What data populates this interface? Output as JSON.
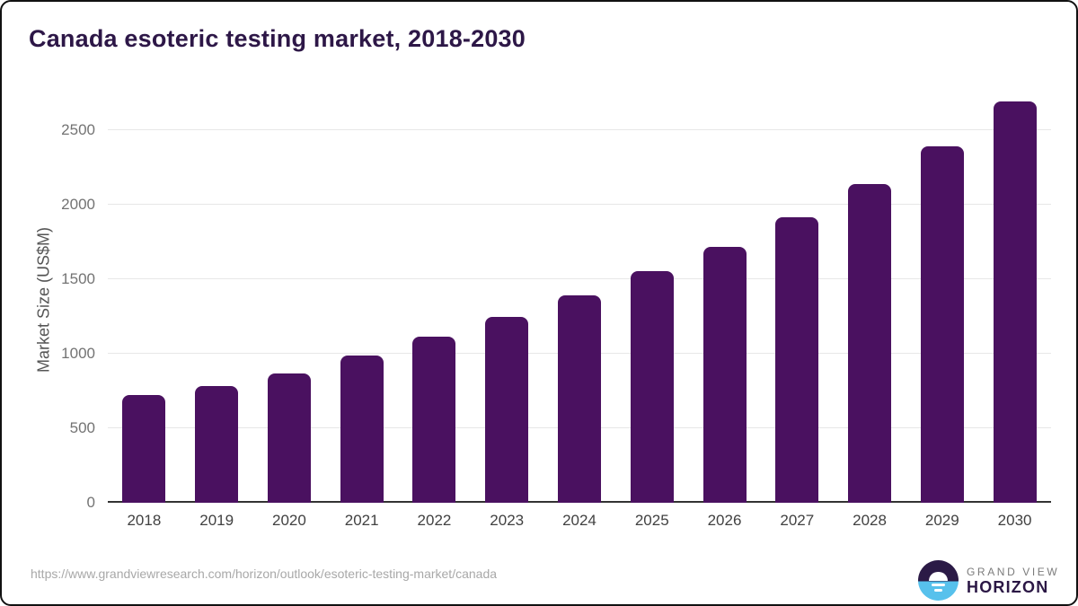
{
  "title": "Canada esoteric testing market, 2018-2030",
  "chart_data": {
    "type": "bar",
    "title": "Canada esoteric testing market, 2018-2030",
    "categories": [
      "2018",
      "2019",
      "2020",
      "2021",
      "2022",
      "2023",
      "2024",
      "2025",
      "2026",
      "2027",
      "2028",
      "2029",
      "2030"
    ],
    "values": [
      725,
      785,
      865,
      990,
      1115,
      1245,
      1390,
      1555,
      1715,
      1915,
      2140,
      2390,
      2690
    ],
    "xlabel": "",
    "ylabel": "Market Size (US$M)",
    "ylim": [
      0,
      2770
    ],
    "yticks": [
      0,
      500,
      1000,
      1500,
      2000,
      2500
    ],
    "grid": true,
    "legend": "none",
    "bar_color": "#4a1160"
  },
  "colors": {
    "title_text": "#2d1747",
    "bar": "#4a1160",
    "gridline": "#e7e7e7",
    "axis_line": "#333333",
    "y_tick_text": "#737373",
    "x_tick_text": "#414141",
    "url_text": "#a8a8a8",
    "logo_dark": "#2b1a46",
    "logo_blue": "#57c1ec"
  },
  "footer": {
    "source_url": "https://www.grandviewresearch.com/horizon/outlook/esoteric-testing-market/canada",
    "logo": {
      "line1": "GRAND VIEW",
      "line2": "HORIZON"
    }
  }
}
